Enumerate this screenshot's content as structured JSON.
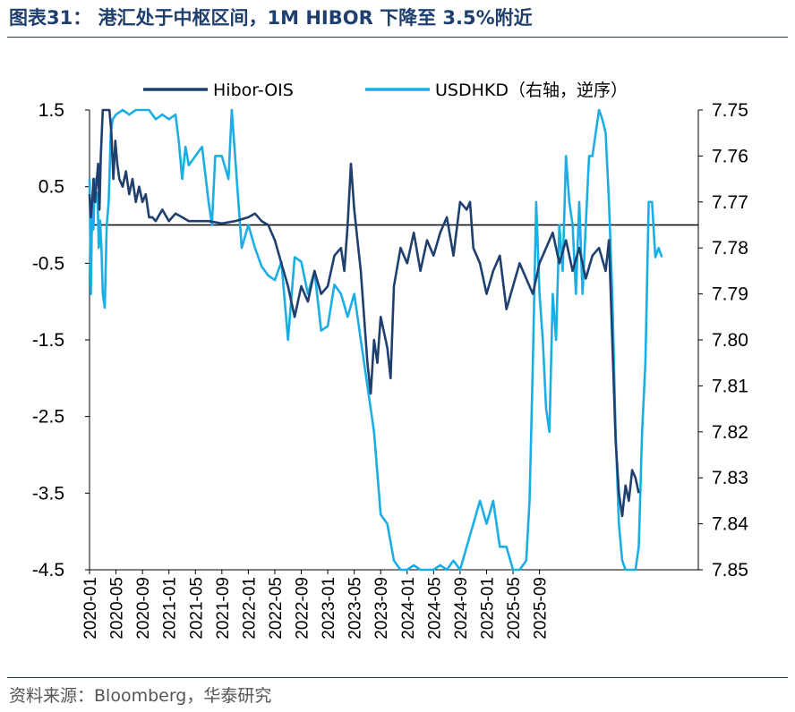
{
  "title": "图表31： 港汇处于中枢区间，1M HIBOR 下降至 3.5%附近",
  "source": "资料来源：Bloomberg，华泰研究",
  "colors": {
    "title": "#1f3f6e",
    "hibor_ois": "#1f3f6e",
    "usdhkd": "#1aaee5",
    "zero_line": "#000000"
  },
  "chart_data": {
    "type": "line",
    "title": "",
    "xlabel": "",
    "ylabel": "",
    "x_ticks": [
      "2020-01",
      "2020-05",
      "2020-09",
      "2021-01",
      "2021-05",
      "2021-09",
      "2022-01",
      "2022-05",
      "2022-09",
      "2023-01",
      "2023-05",
      "2023-09",
      "2024-01",
      "2024-05",
      "2024-09",
      "2025-01",
      "2025-05",
      "2025-09"
    ],
    "y_left": {
      "ticks": [
        "1.5",
        "0.5",
        "-0.5",
        "-1.5",
        "-2.5",
        "-3.5",
        "-4.5"
      ],
      "min": -4.5,
      "max": 1.5
    },
    "y_right": {
      "ticks": [
        "7.75",
        "7.76",
        "7.77",
        "7.78",
        "7.79",
        "7.80",
        "7.81",
        "7.82",
        "7.83",
        "7.84",
        "7.85"
      ],
      "min": 7.75,
      "max": 7.85,
      "inverted": true
    },
    "reference_line": {
      "axis": "left",
      "value": 0
    },
    "legend_position": "top",
    "series": [
      {
        "name": "Hibor-OIS",
        "axis": "left",
        "x_unit": "months since 2020-01",
        "points": [
          [
            0,
            0.4
          ],
          [
            0.2,
            0.1
          ],
          [
            0.4,
            0.3
          ],
          [
            0.6,
            0.6
          ],
          [
            0.8,
            0.3
          ],
          [
            1,
            0.5
          ],
          [
            1.3,
            0.8
          ],
          [
            1.5,
            0.2
          ],
          [
            1.7,
            0.9
          ],
          [
            2,
            1.5
          ],
          [
            2.5,
            1.5
          ],
          [
            3,
            1.5
          ],
          [
            3.3,
            1.2
          ],
          [
            3.6,
            0.6
          ],
          [
            3.9,
            1.1
          ],
          [
            4.2,
            0.8
          ],
          [
            4.5,
            0.6
          ],
          [
            5,
            0.5
          ],
          [
            5.5,
            0.7
          ],
          [
            6,
            0.4
          ],
          [
            6.5,
            0.6
          ],
          [
            7,
            0.3
          ],
          [
            7.5,
            0.5
          ],
          [
            8,
            0.3
          ],
          [
            8.5,
            0.4
          ],
          [
            9,
            0.1
          ],
          [
            9.5,
            0.1
          ],
          [
            10,
            0.05
          ],
          [
            11,
            0.2
          ],
          [
            12,
            0.05
          ],
          [
            13,
            0.15
          ],
          [
            14,
            0.1
          ],
          [
            15,
            0.05
          ],
          [
            16,
            0.05
          ],
          [
            18,
            0.05
          ],
          [
            20,
            0.02
          ],
          [
            22,
            0.05
          ],
          [
            24,
            0.1
          ],
          [
            25,
            0.15
          ],
          [
            26,
            0.05
          ],
          [
            27,
            0
          ],
          [
            28,
            -0.2
          ],
          [
            29,
            -0.5
          ],
          [
            30,
            -0.8
          ],
          [
            31,
            -1.2
          ],
          [
            32,
            -0.8
          ],
          [
            33,
            -1.0
          ],
          [
            34,
            -0.6
          ],
          [
            35,
            -0.9
          ],
          [
            36,
            -0.8
          ],
          [
            37,
            -0.4
          ],
          [
            38,
            -0.3
          ],
          [
            38.5,
            -0.6
          ],
          [
            39,
            0
          ],
          [
            39.5,
            0.8
          ],
          [
            40,
            0.2
          ],
          [
            40.5,
            -0.2
          ],
          [
            41,
            -0.6
          ],
          [
            41.5,
            -1.2
          ],
          [
            42,
            -1.8
          ],
          [
            42.5,
            -2.2
          ],
          [
            43,
            -1.5
          ],
          [
            43.5,
            -1.8
          ],
          [
            44,
            -1.2
          ],
          [
            44.5,
            -1.4
          ],
          [
            45,
            -1.6
          ],
          [
            45.5,
            -2.0
          ],
          [
            46,
            -0.8
          ],
          [
            47,
            -0.3
          ],
          [
            48,
            -0.5
          ],
          [
            49,
            -0.1
          ],
          [
            50,
            -0.6
          ],
          [
            51,
            -0.2
          ],
          [
            52,
            -0.4
          ],
          [
            53,
            -0.1
          ],
          [
            54,
            0.1
          ],
          [
            55,
            -0.4
          ],
          [
            56,
            0.3
          ],
          [
            57,
            0.2
          ],
          [
            57.5,
            0.3
          ],
          [
            58,
            -0.3
          ],
          [
            59,
            -0.5
          ],
          [
            60,
            -0.9
          ],
          [
            61,
            -0.6
          ],
          [
            62,
            -0.4
          ],
          [
            63,
            -1.1
          ],
          [
            64,
            -0.8
          ],
          [
            65,
            -0.5
          ],
          [
            66,
            -0.7
          ],
          [
            67,
            -0.9
          ],
          [
            68,
            -0.5
          ],
          [
            69,
            -0.3
          ],
          [
            70,
            -0.1
          ],
          [
            71,
            -0.5
          ],
          [
            72,
            -0.2
          ],
          [
            73,
            -0.6
          ],
          [
            74,
            -0.3
          ],
          [
            75,
            -0.7
          ],
          [
            76,
            -0.4
          ],
          [
            77,
            -0.3
          ],
          [
            78,
            -0.6
          ],
          [
            78.5,
            -0.2
          ],
          [
            79,
            -1.5
          ],
          [
            79.5,
            -2.8
          ],
          [
            80,
            -3.5
          ],
          [
            80.5,
            -3.8
          ],
          [
            81,
            -3.4
          ],
          [
            81.5,
            -3.6
          ],
          [
            82,
            -3.2
          ],
          [
            82.5,
            -3.3
          ],
          [
            83,
            -3.5
          ]
        ]
      },
      {
        "name": "USDHKD（右轴，逆序）",
        "axis": "right",
        "x_unit": "months since 2020-01",
        "points": [
          [
            0,
            7.765
          ],
          [
            0.2,
            7.79
          ],
          [
            0.4,
            7.77
          ],
          [
            0.6,
            7.776
          ],
          [
            0.8,
            7.765
          ],
          [
            1,
            7.77
          ],
          [
            1.2,
            7.768
          ],
          [
            1.4,
            7.78
          ],
          [
            1.6,
            7.774
          ],
          [
            1.8,
            7.78
          ],
          [
            2.0,
            7.79
          ],
          [
            2.3,
            7.793
          ],
          [
            2.6,
            7.775
          ],
          [
            2.9,
            7.77
          ],
          [
            3.2,
            7.755
          ],
          [
            3.5,
            7.752
          ],
          [
            4,
            7.751
          ],
          [
            5,
            7.75
          ],
          [
            6,
            7.751
          ],
          [
            7,
            7.75
          ],
          [
            8,
            7.75
          ],
          [
            9,
            7.75
          ],
          [
            10,
            7.752
          ],
          [
            11,
            7.751
          ],
          [
            12,
            7.752
          ],
          [
            13,
            7.751
          ],
          [
            13.5,
            7.757
          ],
          [
            14,
            7.765
          ],
          [
            14.5,
            7.758
          ],
          [
            15,
            7.762
          ],
          [
            16,
            7.76
          ],
          [
            17,
            7.758
          ],
          [
            18,
            7.77
          ],
          [
            18.5,
            7.775
          ],
          [
            19,
            7.76
          ],
          [
            20,
            7.76
          ],
          [
            21,
            7.765
          ],
          [
            21.5,
            7.75
          ],
          [
            22,
            7.76
          ],
          [
            23,
            7.78
          ],
          [
            24,
            7.775
          ],
          [
            25,
            7.78
          ],
          [
            26,
            7.784
          ],
          [
            27,
            7.786
          ],
          [
            28,
            7.787
          ],
          [
            29,
            7.783
          ],
          [
            30,
            7.8
          ],
          [
            31,
            7.782
          ],
          [
            32,
            7.783
          ],
          [
            33,
            7.79
          ],
          [
            34,
            7.785
          ],
          [
            35,
            7.798
          ],
          [
            36,
            7.797
          ],
          [
            37,
            7.788
          ],
          [
            38,
            7.79
          ],
          [
            39,
            7.795
          ],
          [
            40,
            7.79
          ],
          [
            41,
            7.8
          ],
          [
            42,
            7.81
          ],
          [
            43,
            7.82
          ],
          [
            44,
            7.838
          ],
          [
            45,
            7.84
          ],
          [
            46,
            7.848
          ],
          [
            47,
            7.85
          ],
          [
            48,
            7.85
          ],
          [
            49,
            7.849
          ],
          [
            50,
            7.85
          ],
          [
            51,
            7.85
          ],
          [
            52,
            7.85
          ],
          [
            53,
            7.849
          ],
          [
            54,
            7.85
          ],
          [
            55,
            7.848
          ],
          [
            56,
            7.85
          ],
          [
            57,
            7.845
          ],
          [
            58,
            7.84
          ],
          [
            59,
            7.835
          ],
          [
            60,
            7.84
          ],
          [
            61,
            7.835
          ],
          [
            62,
            7.845
          ],
          [
            63,
            7.845
          ],
          [
            64,
            7.85
          ],
          [
            65,
            7.85
          ],
          [
            66,
            7.848
          ],
          [
            66.5,
            7.835
          ],
          [
            67,
            7.805
          ],
          [
            67.5,
            7.77
          ],
          [
            68,
            7.79
          ],
          [
            68.5,
            7.8
          ],
          [
            69,
            7.815
          ],
          [
            69.5,
            7.82
          ],
          [
            70,
            7.79
          ],
          [
            70.5,
            7.8
          ],
          [
            71,
            7.775
          ],
          [
            71.5,
            7.785
          ],
          [
            72,
            7.76
          ],
          [
            72.5,
            7.77
          ],
          [
            73,
            7.775
          ],
          [
            73.5,
            7.79
          ],
          [
            74,
            7.77
          ],
          [
            74.5,
            7.79
          ],
          [
            75,
            7.775
          ],
          [
            75.5,
            7.76
          ],
          [
            76,
            7.76
          ],
          [
            76.5,
            7.755
          ],
          [
            77,
            7.75
          ],
          [
            77.5,
            7.752
          ],
          [
            78,
            7.755
          ],
          [
            78.5,
            7.77
          ],
          [
            79,
            7.79
          ],
          [
            79.5,
            7.82
          ],
          [
            80,
            7.84
          ],
          [
            80.5,
            7.848
          ],
          [
            81,
            7.85
          ],
          [
            81.5,
            7.85
          ],
          [
            82,
            7.85
          ],
          [
            82.5,
            7.85
          ],
          [
            83,
            7.845
          ],
          [
            83.5,
            7.82
          ],
          [
            84,
            7.805
          ],
          [
            84.5,
            7.77
          ],
          [
            85,
            7.77
          ],
          [
            85.5,
            7.782
          ],
          [
            86,
            7.78
          ],
          [
            86.5,
            7.782
          ]
        ]
      }
    ]
  }
}
